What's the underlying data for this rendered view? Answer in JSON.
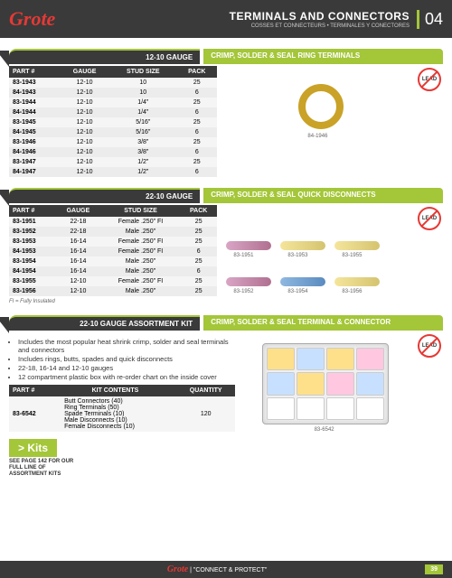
{
  "header": {
    "logo": "Grote",
    "title": "TERMINALS AND CONNECTORS",
    "subtitle": "COSSES ET CONNECTEURS • TERMINALES Y CONECTORES",
    "section_num": "04"
  },
  "lead_free": "LEAD",
  "section1": {
    "gauge": "12-10 GAUGE",
    "category": "CRIMP, SOLDER & SEAL RING TERMINALS",
    "columns": [
      "PART #",
      "GAUGE",
      "STUD SIZE",
      "PACK"
    ],
    "rows": [
      [
        "83-1943",
        "12-10",
        "10",
        "25"
      ],
      [
        "84-1943",
        "12-10",
        "10",
        "6"
      ],
      [
        "83-1944",
        "12-10",
        "1/4\"",
        "25"
      ],
      [
        "84-1944",
        "12-10",
        "1/4\"",
        "6"
      ],
      [
        "83-1945",
        "12-10",
        "5/16\"",
        "25"
      ],
      [
        "84-1945",
        "12-10",
        "5/16\"",
        "6"
      ],
      [
        "83-1946",
        "12-10",
        "3/8\"",
        "25"
      ],
      [
        "84-1946",
        "12-10",
        "3/8\"",
        "6"
      ],
      [
        "83-1947",
        "12-10",
        "1/2\"",
        "25"
      ],
      [
        "84-1947",
        "12-10",
        "1/2\"",
        "6"
      ]
    ],
    "img_label": "84-1946"
  },
  "section2": {
    "gauge": "22-10 GAUGE",
    "category": "CRIMP, SOLDER & SEAL QUICK DISCONNECTS",
    "columns": [
      "PART #",
      "GAUGE",
      "STUD SIZE",
      "PACK"
    ],
    "rows": [
      [
        "83-1951",
        "22-18",
        "Female .250\" FI",
        "25"
      ],
      [
        "83-1952",
        "22-18",
        "Male .250\"",
        "25"
      ],
      [
        "83-1953",
        "16-14",
        "Female .250\" FI",
        "25"
      ],
      [
        "84-1953",
        "16-14",
        "Female .250\" FI",
        "6"
      ],
      [
        "83-1954",
        "16-14",
        "Male .250\"",
        "25"
      ],
      [
        "84-1954",
        "16-14",
        "Male .250\"",
        "6"
      ],
      [
        "83-1955",
        "12-10",
        "Female .250\" FI",
        "25"
      ],
      [
        "83-1956",
        "12-10",
        "Male .250\"",
        "25"
      ]
    ],
    "note": "FI = Fully Insulated",
    "labels": [
      "83-1951",
      "83-1953",
      "83-1955",
      "83-1952",
      "83-1954",
      "83-1956"
    ]
  },
  "section3": {
    "gauge": "22-10 GAUGE ASSORTMENT KIT",
    "category": "CRIMP, SOLDER & SEAL TERMINAL & CONNECTOR",
    "bullets": [
      "Includes the most popular heat shrink crimp, solder and seal terminals and connectors",
      "Includes rings, butts, spades and quick disconnects",
      "22-18, 16-14 and 12-10 gauges",
      "12 compartment plastic box with re-order chart on the inside cover"
    ],
    "columns": [
      "PART #",
      "KIT CONTENTS",
      "QUANTITY"
    ],
    "part": "83-6542",
    "contents": [
      "Butt Connectors (40)",
      "Ring Terminals (50)",
      "Spade Terminals (10)",
      "Male Disconnects (10)",
      "Female Disconnects (10)"
    ],
    "qty": "120",
    "img_label": "83-6542"
  },
  "kits": {
    "tag": "> Kits",
    "note": "SEE PAGE 142 FOR OUR FULL LINE OF ASSORTMENT KITS"
  },
  "footer": {
    "brand": "Grote",
    "tagline": "\"CONNECT & PROTECT\"",
    "page": "39"
  }
}
